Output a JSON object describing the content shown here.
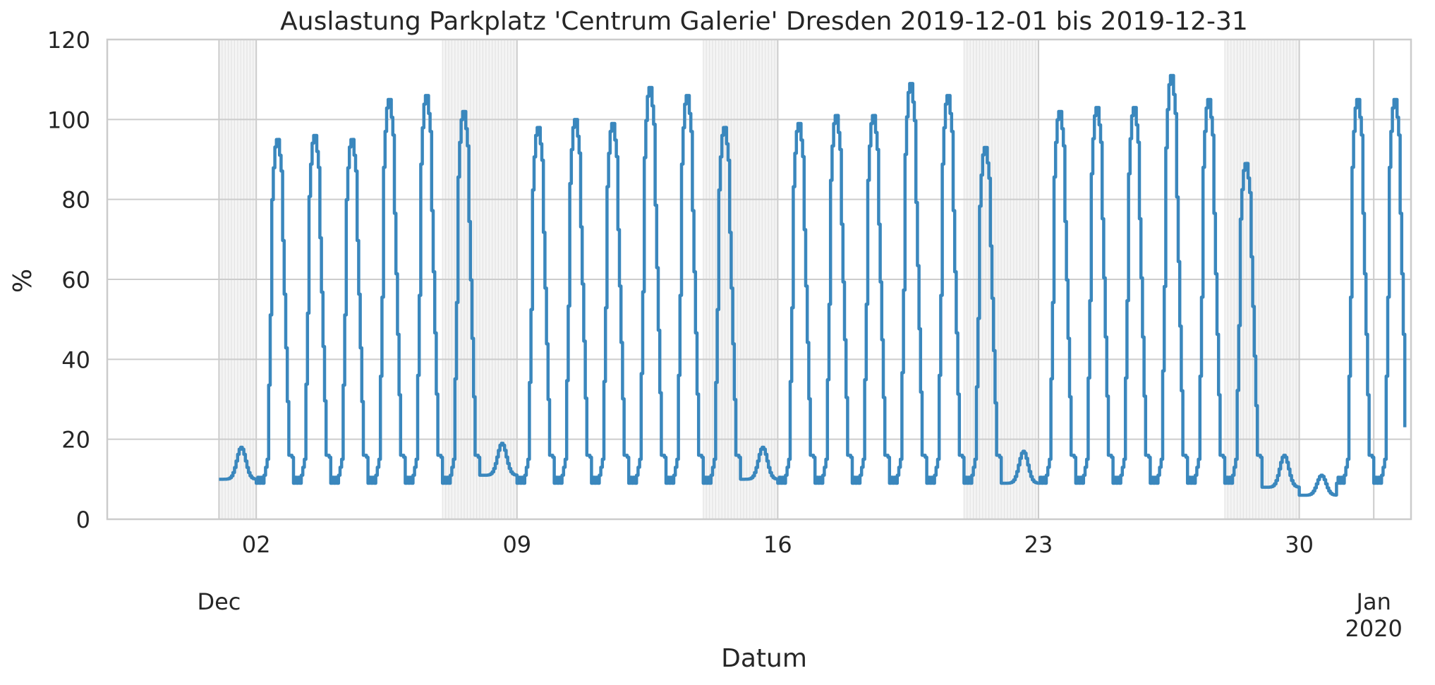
{
  "chart_data": {
    "type": "line",
    "title": "Auslastung Parkplatz 'Centrum Galerie' Dresden 2019-12-01 bis 2019-12-31",
    "xlabel": "Datum",
    "ylabel": "%",
    "ylim": [
      0,
      120
    ],
    "xlim": [
      "2019-11-28",
      "2020-01-02"
    ],
    "yticks": [
      0,
      20,
      40,
      60,
      80,
      100,
      120
    ],
    "xticks_minor": [
      {
        "date": "2019-12-02",
        "label": "02"
      },
      {
        "date": "2019-12-09",
        "label": "09"
      },
      {
        "date": "2019-12-16",
        "label": "16"
      },
      {
        "date": "2019-12-23",
        "label": "23"
      },
      {
        "date": "2019-12-30",
        "label": "30"
      }
    ],
    "xticks_major": [
      {
        "date": "2019-12-01",
        "label": "Dec"
      },
      {
        "date": "2020-01-01",
        "label": "Jan\n2020"
      }
    ],
    "grid": true,
    "line_color": "#3a87bd",
    "weekend_shading_color": "#ebebeb",
    "weekends": [
      [
        "2019-12-01",
        "2019-12-02"
      ],
      [
        "2019-12-07",
        "2019-12-09"
      ],
      [
        "2019-12-14",
        "2019-12-16"
      ],
      [
        "2019-12-21",
        "2019-12-23"
      ],
      [
        "2019-12-28",
        "2019-12-30"
      ]
    ],
    "daily_peaks": [
      {
        "date": "2019-12-01",
        "peak": 18
      },
      {
        "date": "2019-12-02",
        "peak": 95
      },
      {
        "date": "2019-12-03",
        "peak": 96
      },
      {
        "date": "2019-12-04",
        "peak": 95
      },
      {
        "date": "2019-12-05",
        "peak": 105
      },
      {
        "date": "2019-12-06",
        "peak": 106
      },
      {
        "date": "2019-12-07",
        "peak": 102
      },
      {
        "date": "2019-12-08",
        "peak": 19
      },
      {
        "date": "2019-12-09",
        "peak": 98
      },
      {
        "date": "2019-12-10",
        "peak": 100
      },
      {
        "date": "2019-12-11",
        "peak": 99
      },
      {
        "date": "2019-12-12",
        "peak": 108
      },
      {
        "date": "2019-12-13",
        "peak": 106
      },
      {
        "date": "2019-12-14",
        "peak": 98
      },
      {
        "date": "2019-12-15",
        "peak": 18
      },
      {
        "date": "2019-12-16",
        "peak": 99
      },
      {
        "date": "2019-12-17",
        "peak": 101
      },
      {
        "date": "2019-12-18",
        "peak": 101
      },
      {
        "date": "2019-12-19",
        "peak": 109
      },
      {
        "date": "2019-12-20",
        "peak": 106
      },
      {
        "date": "2019-12-21",
        "peak": 93
      },
      {
        "date": "2019-12-22",
        "peak": 17
      },
      {
        "date": "2019-12-23",
        "peak": 102
      },
      {
        "date": "2019-12-24",
        "peak": 103
      },
      {
        "date": "2019-12-25",
        "peak": 103
      },
      {
        "date": "2019-12-26",
        "peak": 111
      },
      {
        "date": "2019-12-27",
        "peak": 105
      },
      {
        "date": "2019-12-28",
        "peak": 89
      },
      {
        "date": "2019-12-29",
        "peak": 16
      },
      {
        "date": "2019-12-30",
        "peak": 11
      },
      {
        "date": "2019-12-31",
        "peak": 105
      },
      {
        "date": "2020-01-01",
        "peak": 105
      }
    ],
    "end_value": {
      "date": "2020-01-01",
      "value": 23
    }
  }
}
